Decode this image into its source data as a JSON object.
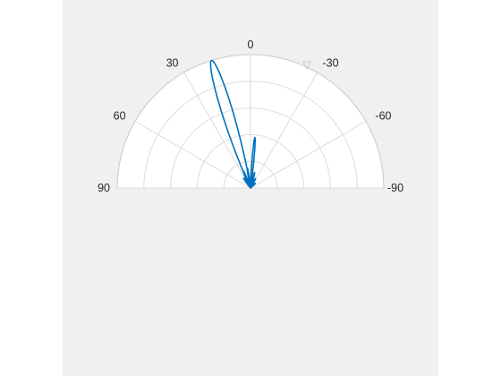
{
  "chart_data": {
    "type": "polar",
    "half_plane": true,
    "theta_zero": "top",
    "theta_direction": "counterclockwise",
    "theta_ticks": [
      90,
      60,
      30,
      0,
      -30,
      -60,
      -90
    ],
    "theta_tick_labels": [
      "90",
      "60",
      "30",
      "0",
      "-30",
      "-60",
      "-90"
    ],
    "r_lim": [
      0,
      1
    ],
    "r_rings": 5,
    "grid": true,
    "r_tick_labels_visible": false,
    "series": [
      {
        "color": "#0072bd",
        "lobes": [
          {
            "center_deg": 17,
            "amplitude": 1.0,
            "half_width_deg": 9
          },
          {
            "center_deg": -5,
            "amplitude": 0.38,
            "half_width_deg": 4
          },
          {
            "center_deg": 9,
            "amplitude": 0.15,
            "half_width_deg": 5
          },
          {
            "center_deg": 23,
            "amplitude": 0.14,
            "half_width_deg": 6
          },
          {
            "center_deg": 35,
            "amplitude": 0.09,
            "half_width_deg": 6
          },
          {
            "center_deg": -15,
            "amplitude": 0.12,
            "half_width_deg": 5
          },
          {
            "center_deg": -28,
            "amplitude": 0.08,
            "half_width_deg": 6
          },
          {
            "center_deg": -45,
            "amplitude": 0.05,
            "half_width_deg": 8
          }
        ]
      }
    ]
  }
}
